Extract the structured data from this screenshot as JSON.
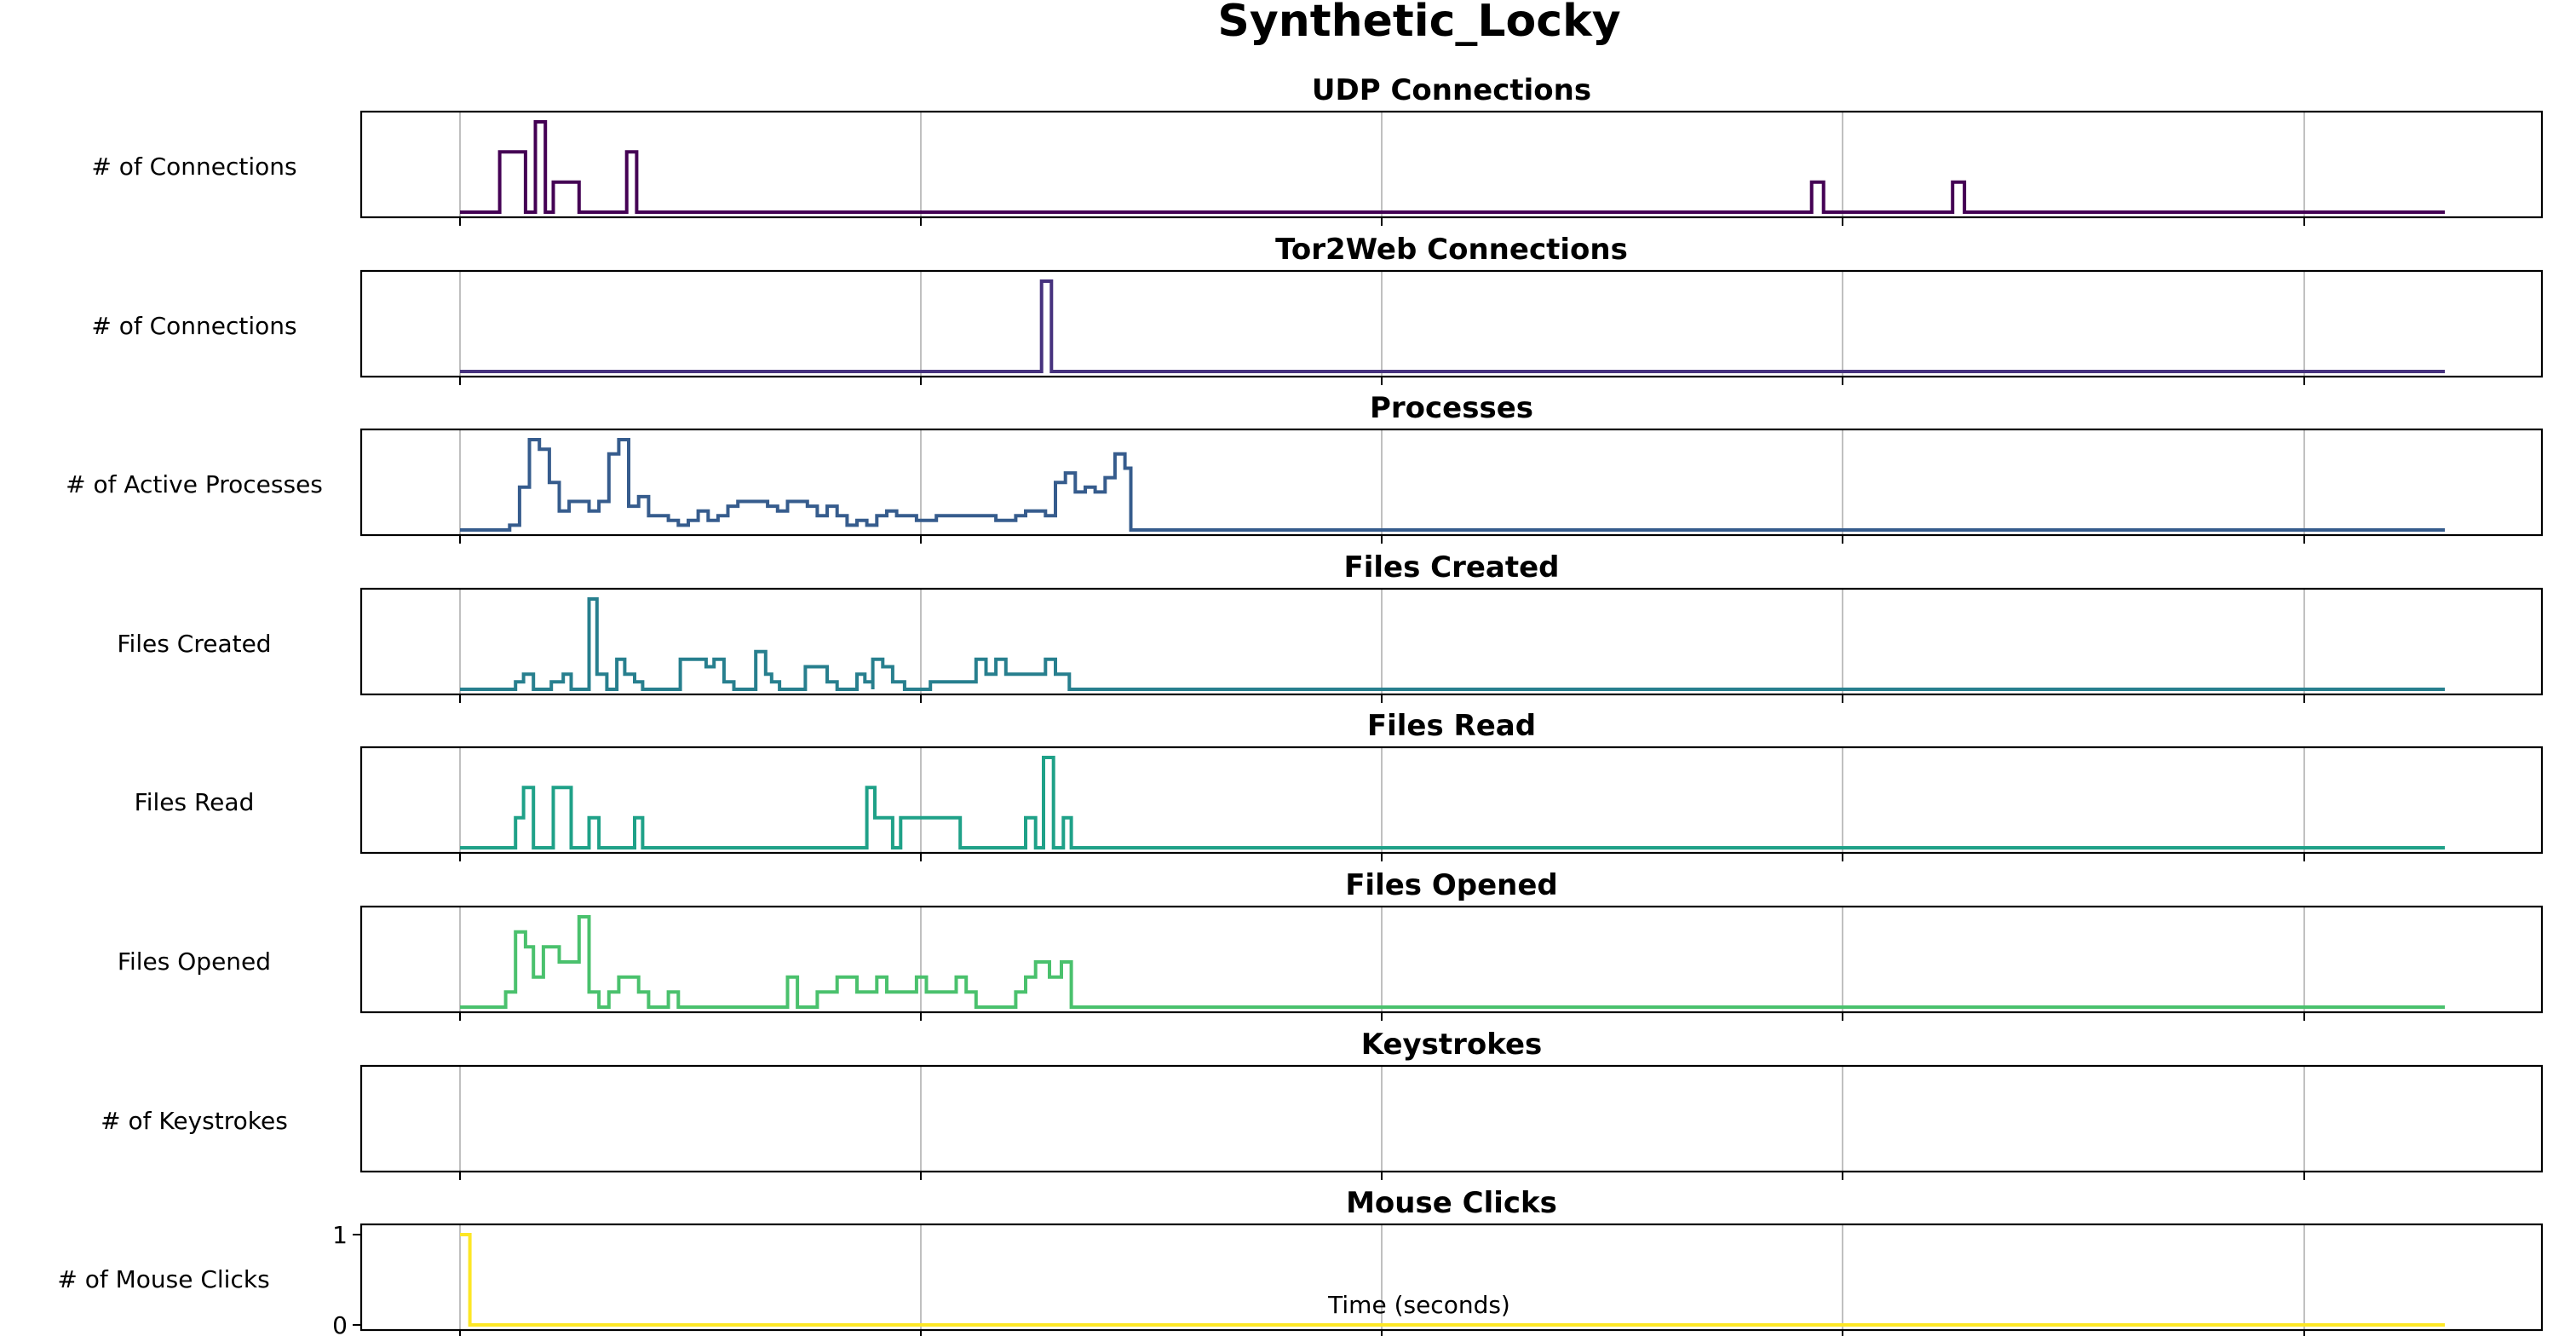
{
  "figure": {
    "title": "Synthetic_Locky",
    "xlabel": "Time (seconds)"
  },
  "chart_data": [
    {
      "type": "line",
      "step": true,
      "title": "UDP Connections",
      "ylabel": "# of Connections",
      "color": "#440154",
      "xlim": [
        -0.05,
        1.08
      ],
      "x_range": [
        0,
        1
      ],
      "grid": true,
      "points": [
        [
          0,
          0
        ],
        [
          0.02,
          2
        ],
        [
          0.033,
          0
        ],
        [
          0.038,
          3
        ],
        [
          0.043,
          0
        ],
        [
          0.047,
          1
        ],
        [
          0.06,
          0
        ],
        [
          0.084,
          2
        ],
        [
          0.089,
          0
        ],
        [
          0.681,
          1
        ],
        [
          0.687,
          0
        ],
        [
          0.752,
          1
        ],
        [
          0.758,
          0
        ],
        [
          1.0,
          0
        ]
      ]
    },
    {
      "type": "line",
      "step": true,
      "title": "Tor2Web Connections",
      "ylabel": "# of Connections",
      "color": "#46327e",
      "xlim": [
        -0.05,
        1.08
      ],
      "x_range": [
        0,
        1
      ],
      "grid": true,
      "points": [
        [
          0,
          0
        ],
        [
          0.293,
          1
        ],
        [
          0.298,
          0
        ],
        [
          1.0,
          0
        ]
      ]
    },
    {
      "type": "line",
      "step": true,
      "title": "Processes",
      "ylabel": "# of Active Processes",
      "color": "#365c8d",
      "xlim": [
        -0.05,
        1.08
      ],
      "x_range": [
        0,
        1
      ],
      "grid": true,
      "points": [
        [
          0,
          0
        ],
        [
          0.025,
          1
        ],
        [
          0.03,
          9
        ],
        [
          0.035,
          19
        ],
        [
          0.04,
          17
        ],
        [
          0.045,
          10
        ],
        [
          0.05,
          4
        ],
        [
          0.055,
          6
        ],
        [
          0.06,
          6
        ],
        [
          0.065,
          4
        ],
        [
          0.07,
          6
        ],
        [
          0.075,
          16
        ],
        [
          0.08,
          19
        ],
        [
          0.085,
          5
        ],
        [
          0.09,
          7
        ],
        [
          0.095,
          3
        ],
        [
          0.1,
          3
        ],
        [
          0.105,
          2
        ],
        [
          0.11,
          1
        ],
        [
          0.115,
          2
        ],
        [
          0.12,
          4
        ],
        [
          0.125,
          2
        ],
        [
          0.13,
          3
        ],
        [
          0.135,
          5
        ],
        [
          0.14,
          6
        ],
        [
          0.155,
          5
        ],
        [
          0.16,
          4
        ],
        [
          0.165,
          6
        ],
        [
          0.175,
          5
        ],
        [
          0.18,
          3
        ],
        [
          0.185,
          5
        ],
        [
          0.19,
          3
        ],
        [
          0.195,
          1
        ],
        [
          0.2,
          2
        ],
        [
          0.205,
          1
        ],
        [
          0.21,
          3
        ],
        [
          0.215,
          4
        ],
        [
          0.22,
          3
        ],
        [
          0.23,
          2
        ],
        [
          0.24,
          3
        ],
        [
          0.245,
          3
        ],
        [
          0.25,
          3
        ],
        [
          0.26,
          3
        ],
        [
          0.27,
          2
        ],
        [
          0.28,
          3
        ],
        [
          0.285,
          4
        ],
        [
          0.295,
          3
        ],
        [
          0.3,
          10
        ],
        [
          0.305,
          12
        ],
        [
          0.31,
          8
        ],
        [
          0.315,
          9
        ],
        [
          0.32,
          8
        ],
        [
          0.325,
          11
        ],
        [
          0.33,
          16
        ],
        [
          0.335,
          13
        ],
        [
          0.338,
          0
        ],
        [
          1.0,
          0
        ]
      ]
    },
    {
      "type": "line",
      "step": true,
      "title": "Files Created",
      "ylabel": "Files Created",
      "color": "#277f8e",
      "xlim": [
        -0.05,
        1.08
      ],
      "x_range": [
        0,
        1
      ],
      "grid": true,
      "points": [
        [
          0,
          0
        ],
        [
          0.028,
          1
        ],
        [
          0.032,
          2
        ],
        [
          0.037,
          0
        ],
        [
          0.046,
          1
        ],
        [
          0.052,
          2
        ],
        [
          0.056,
          0
        ],
        [
          0.065,
          12
        ],
        [
          0.069,
          2
        ],
        [
          0.074,
          0
        ],
        [
          0.079,
          4
        ],
        [
          0.083,
          2
        ],
        [
          0.088,
          1
        ],
        [
          0.092,
          0
        ],
        [
          0.111,
          4
        ],
        [
          0.124,
          3
        ],
        [
          0.128,
          4
        ],
        [
          0.133,
          1
        ],
        [
          0.138,
          0
        ],
        [
          0.149,
          5
        ],
        [
          0.154,
          2
        ],
        [
          0.157,
          1
        ],
        [
          0.161,
          0
        ],
        [
          0.174,
          3
        ],
        [
          0.185,
          1
        ],
        [
          0.19,
          0
        ],
        [
          0.2,
          2
        ],
        [
          0.204,
          1
        ],
        [
          0.208,
          0
        ],
        [
          0.208,
          4
        ],
        [
          0.213,
          3
        ],
        [
          0.218,
          1
        ],
        [
          0.224,
          0
        ],
        [
          0.237,
          1
        ],
        [
          0.26,
          2
        ],
        [
          0.26,
          4
        ],
        [
          0.265,
          2
        ],
        [
          0.27,
          4
        ],
        [
          0.275,
          2
        ],
        [
          0.295,
          4
        ],
        [
          0.3,
          2
        ],
        [
          0.307,
          0
        ],
        [
          1.0,
          0
        ]
      ]
    },
    {
      "type": "line",
      "step": true,
      "title": "Files Read",
      "ylabel": "Files Read",
      "color": "#1fa188",
      "xlim": [
        -0.05,
        1.08
      ],
      "x_range": [
        0,
        1
      ],
      "grid": true,
      "points": [
        [
          0,
          0
        ],
        [
          0.028,
          2
        ],
        [
          0.032,
          4
        ],
        [
          0.037,
          0
        ],
        [
          0.047,
          4
        ],
        [
          0.056,
          0
        ],
        [
          0.065,
          2
        ],
        [
          0.07,
          0
        ],
        [
          0.088,
          2
        ],
        [
          0.092,
          0
        ],
        [
          0.205,
          4
        ],
        [
          0.209,
          2
        ],
        [
          0.218,
          0
        ],
        [
          0.222,
          2
        ],
        [
          0.252,
          0
        ],
        [
          0.285,
          2
        ],
        [
          0.29,
          0
        ],
        [
          0.294,
          6
        ],
        [
          0.299,
          0
        ],
        [
          0.304,
          2
        ],
        [
          0.308,
          0
        ],
        [
          1.0,
          0
        ]
      ]
    },
    {
      "type": "line",
      "step": true,
      "title": "Files Opened",
      "ylabel": "Files Opened",
      "color": "#4ac16d",
      "xlim": [
        -0.05,
        1.08
      ],
      "x_range": [
        0,
        1
      ],
      "grid": true,
      "points": [
        [
          0,
          0
        ],
        [
          0.023,
          1
        ],
        [
          0.028,
          5
        ],
        [
          0.033,
          4
        ],
        [
          0.037,
          2
        ],
        [
          0.042,
          4
        ],
        [
          0.05,
          3
        ],
        [
          0.06,
          6
        ],
        [
          0.065,
          1
        ],
        [
          0.07,
          0
        ],
        [
          0.075,
          1
        ],
        [
          0.08,
          2
        ],
        [
          0.09,
          1
        ],
        [
          0.095,
          0
        ],
        [
          0.1,
          0
        ],
        [
          0.105,
          1
        ],
        [
          0.11,
          0
        ],
        [
          0.16,
          0
        ],
        [
          0.165,
          2
        ],
        [
          0.17,
          0
        ],
        [
          0.18,
          1
        ],
        [
          0.19,
          2
        ],
        [
          0.2,
          1
        ],
        [
          0.21,
          2
        ],
        [
          0.215,
          1
        ],
        [
          0.22,
          1
        ],
        [
          0.23,
          2
        ],
        [
          0.235,
          1
        ],
        [
          0.25,
          2
        ],
        [
          0.255,
          1
        ],
        [
          0.26,
          0
        ],
        [
          0.275,
          0
        ],
        [
          0.28,
          1
        ],
        [
          0.285,
          2
        ],
        [
          0.29,
          3
        ],
        [
          0.297,
          2
        ],
        [
          0.303,
          3
        ],
        [
          0.308,
          0
        ],
        [
          1.0,
          0
        ]
      ]
    },
    {
      "type": "line",
      "step": true,
      "title": "Keystrokes",
      "ylabel": "# of Keystrokes",
      "color": "#a0da39",
      "xlim": [
        -0.05,
        1.08
      ],
      "x_range": [
        0,
        1
      ],
      "grid": true,
      "points": []
    },
    {
      "type": "line",
      "step": true,
      "title": "Mouse Clicks",
      "ylabel": "# of Mouse Clicks",
      "color": "#fde725",
      "xlim": [
        -0.05,
        1.08
      ],
      "x_range": [
        0,
        1
      ],
      "ylim": [
        0,
        1
      ],
      "yticks": [
        "1",
        "0"
      ],
      "grid": true,
      "points": [
        [
          0,
          1
        ],
        [
          0.005,
          0
        ],
        [
          1.0,
          0
        ]
      ]
    }
  ]
}
